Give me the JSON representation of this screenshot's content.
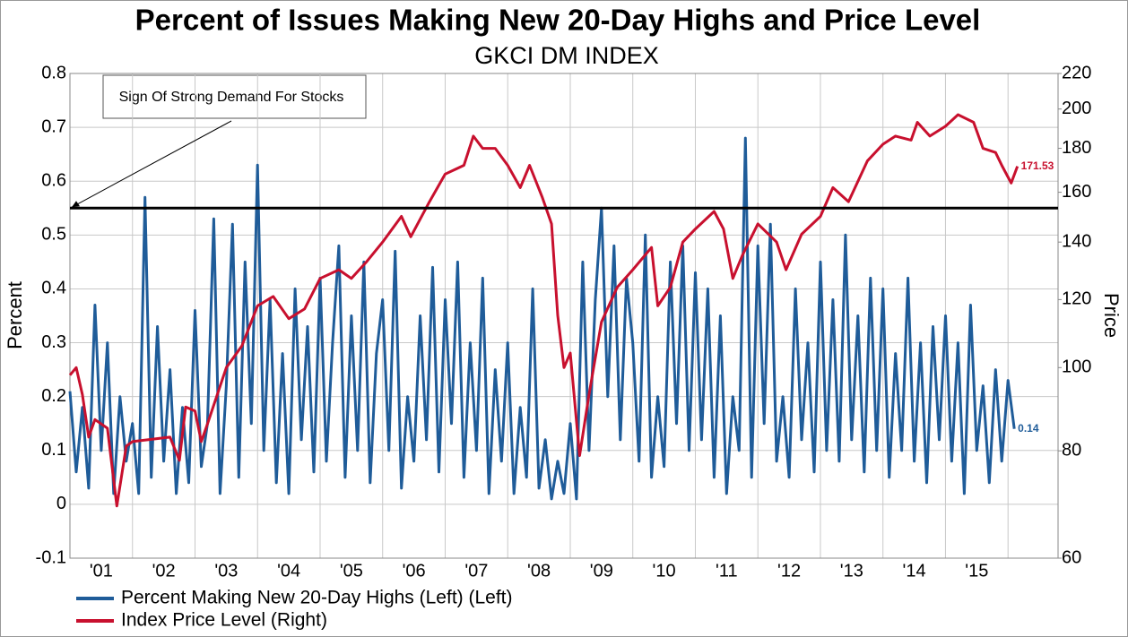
{
  "chart_data": {
    "type": "line",
    "title": "Percent of Issues  Making New 20-Day Highs and Price Level",
    "subtitle": "GKCI DM INDEX",
    "y_label": "Percent",
    "y2_label": "Price",
    "annotation": "Sign Of Strong Demand For Stocks",
    "threshold": 0.55,
    "threshold_color": "#000000",
    "grid": true,
    "y2_log": true,
    "legend": "bottom",
    "xlim": [
      2001,
      2016.8
    ],
    "xticks": [
      {
        "value": 2001.5,
        "label": "'01"
      },
      {
        "value": 2002.5,
        "label": "'02"
      },
      {
        "value": 2003.5,
        "label": "'03"
      },
      {
        "value": 2004.5,
        "label": "'04"
      },
      {
        "value": 2005.5,
        "label": "'05"
      },
      {
        "value": 2006.5,
        "label": "'06"
      },
      {
        "value": 2007.5,
        "label": "'07"
      },
      {
        "value": 2008.5,
        "label": "'08"
      },
      {
        "value": 2009.5,
        "label": "'09"
      },
      {
        "value": 2010.5,
        "label": "'10"
      },
      {
        "value": 2011.5,
        "label": "'11"
      },
      {
        "value": 2012.5,
        "label": "'12"
      },
      {
        "value": 2013.5,
        "label": "'13"
      },
      {
        "value": 2014.5,
        "label": "'14"
      },
      {
        "value": 2015.5,
        "label": "'15"
      }
    ],
    "ylim": [
      -0.1,
      0.8
    ],
    "yticks": [
      -0.1,
      0,
      0.1,
      0.2,
      0.3,
      0.4,
      0.5,
      0.6,
      0.7,
      0.8
    ],
    "y2lim": [
      60,
      220
    ],
    "y2ticks": [
      60,
      80,
      100,
      120,
      140,
      160,
      180,
      200,
      220
    ],
    "series": [
      {
        "name": "Percent Making New 20-Day Highs (Left) (Left)",
        "color": "#1f5c99",
        "x": [
          2001.0,
          2001.1,
          2001.2,
          2001.3,
          2001.4,
          2001.5,
          2001.6,
          2001.7,
          2001.8,
          2001.9,
          2002.0,
          2002.1,
          2002.2,
          2002.3,
          2002.4,
          2002.5,
          2002.6,
          2002.7,
          2002.8,
          2002.9,
          2003.0,
          2003.1,
          2003.2,
          2003.3,
          2003.4,
          2003.5,
          2003.6,
          2003.7,
          2003.8,
          2003.9,
          2004.0,
          2004.1,
          2004.2,
          2004.3,
          2004.4,
          2004.5,
          2004.6,
          2004.7,
          2004.8,
          2004.9,
          2005.0,
          2005.1,
          2005.2,
          2005.3,
          2005.4,
          2005.5,
          2005.6,
          2005.7,
          2005.8,
          2005.9,
          2006.0,
          2006.1,
          2006.2,
          2006.3,
          2006.4,
          2006.5,
          2006.6,
          2006.7,
          2006.8,
          2006.9,
          2007.0,
          2007.1,
          2007.2,
          2007.3,
          2007.4,
          2007.5,
          2007.6,
          2007.7,
          2007.8,
          2007.9,
          2008.0,
          2008.1,
          2008.2,
          2008.3,
          2008.4,
          2008.5,
          2008.6,
          2008.7,
          2008.8,
          2008.9,
          2009.0,
          2009.1,
          2009.2,
          2009.3,
          2009.4,
          2009.5,
          2009.6,
          2009.7,
          2009.8,
          2009.9,
          2010.0,
          2010.1,
          2010.2,
          2010.3,
          2010.4,
          2010.5,
          2010.6,
          2010.7,
          2010.8,
          2010.9,
          2011.0,
          2011.1,
          2011.2,
          2011.3,
          2011.4,
          2011.5,
          2011.6,
          2011.7,
          2011.8,
          2011.9,
          2012.0,
          2012.1,
          2012.2,
          2012.3,
          2012.4,
          2012.5,
          2012.6,
          2012.7,
          2012.8,
          2012.9,
          2013.0,
          2013.1,
          2013.2,
          2013.3,
          2013.4,
          2013.5,
          2013.6,
          2013.7,
          2013.8,
          2013.9,
          2014.0,
          2014.1,
          2014.2,
          2014.3,
          2014.4,
          2014.5,
          2014.6,
          2014.7,
          2014.8,
          2014.9,
          2015.0,
          2015.1,
          2015.2,
          2015.3,
          2015.4,
          2015.5,
          2015.6,
          2015.7,
          2015.8,
          2015.9,
          2016.0,
          2016.1
        ],
        "values": [
          0.21,
          0.06,
          0.18,
          0.03,
          0.37,
          0.1,
          0.3,
          0.02,
          0.2,
          0.08,
          0.15,
          0.02,
          0.57,
          0.05,
          0.33,
          0.08,
          0.25,
          0.02,
          0.18,
          0.04,
          0.36,
          0.07,
          0.15,
          0.53,
          0.02,
          0.22,
          0.52,
          0.05,
          0.45,
          0.15,
          0.63,
          0.1,
          0.38,
          0.04,
          0.28,
          0.02,
          0.4,
          0.12,
          0.33,
          0.06,
          0.42,
          0.08,
          0.3,
          0.48,
          0.05,
          0.35,
          0.1,
          0.45,
          0.04,
          0.28,
          0.38,
          0.1,
          0.47,
          0.03,
          0.2,
          0.08,
          0.35,
          0.12,
          0.44,
          0.06,
          0.38,
          0.15,
          0.45,
          0.05,
          0.3,
          0.1,
          0.42,
          0.02,
          0.25,
          0.08,
          0.3,
          0.02,
          0.18,
          0.05,
          0.4,
          0.03,
          0.12,
          0.01,
          0.08,
          0.02,
          0.15,
          0.01,
          0.45,
          0.1,
          0.38,
          0.55,
          0.2,
          0.48,
          0.12,
          0.42,
          0.3,
          0.08,
          0.5,
          0.05,
          0.2,
          0.07,
          0.45,
          0.15,
          0.48,
          0.1,
          0.43,
          0.12,
          0.4,
          0.05,
          0.35,
          0.02,
          0.2,
          0.1,
          0.68,
          0.05,
          0.48,
          0.15,
          0.52,
          0.08,
          0.2,
          0.05,
          0.4,
          0.12,
          0.3,
          0.06,
          0.45,
          0.1,
          0.38,
          0.08,
          0.5,
          0.12,
          0.35,
          0.06,
          0.42,
          0.1,
          0.4,
          0.05,
          0.28,
          0.1,
          0.42,
          0.08,
          0.3,
          0.04,
          0.33,
          0.12,
          0.35,
          0.08,
          0.3,
          0.02,
          0.37,
          0.1,
          0.22,
          0.04,
          0.25,
          0.08,
          0.23,
          0.14
        ]
      },
      {
        "name": "Index Price Level (Right)",
        "color": "#c8102e",
        "axis": "y2",
        "x": [
          2001.0,
          2001.1,
          2001.2,
          2001.3,
          2001.4,
          2001.6,
          2001.75,
          2001.9,
          2002.0,
          2002.6,
          2002.75,
          2002.85,
          2003.0,
          2003.1,
          2003.2,
          2003.5,
          2003.75,
          2004.0,
          2004.25,
          2004.5,
          2004.75,
          2005.0,
          2005.3,
          2005.5,
          2005.75,
          2006.0,
          2006.3,
          2006.45,
          2006.75,
          2007.0,
          2007.3,
          2007.45,
          2007.6,
          2007.8,
          2008.0,
          2008.2,
          2008.35,
          2008.55,
          2008.7,
          2008.8,
          2008.9,
          2009.0,
          2009.15,
          2009.3,
          2009.5,
          2009.75,
          2010.0,
          2010.3,
          2010.4,
          2010.6,
          2010.8,
          2011.0,
          2011.3,
          2011.45,
          2011.6,
          2011.75,
          2012.0,
          2012.3,
          2012.45,
          2012.7,
          2013.0,
          2013.2,
          2013.45,
          2013.75,
          2014.0,
          2014.2,
          2014.45,
          2014.55,
          2014.75,
          2015.0,
          2015.2,
          2015.45,
          2015.6,
          2015.8,
          2015.9,
          2016.05,
          2016.15
        ],
        "values": [
          98,
          100,
          93,
          83,
          87,
          85,
          69,
          81,
          82,
          83,
          78,
          90,
          89,
          82,
          86,
          100,
          106,
          118,
          121,
          114,
          117,
          127,
          130,
          127,
          133,
          140,
          150,
          142,
          156,
          168,
          172,
          186,
          180,
          180,
          172,
          162,
          172,
          158,
          147,
          115,
          100,
          104,
          79,
          93,
          113,
          124,
          130,
          138,
          118,
          124,
          140,
          145,
          152,
          145,
          127,
          135,
          147,
          140,
          130,
          143,
          150,
          162,
          156,
          174,
          182,
          186,
          184,
          193,
          186,
          191,
          197,
          193,
          180,
          178,
          172,
          164,
          171.53
        ]
      }
    ]
  }
}
